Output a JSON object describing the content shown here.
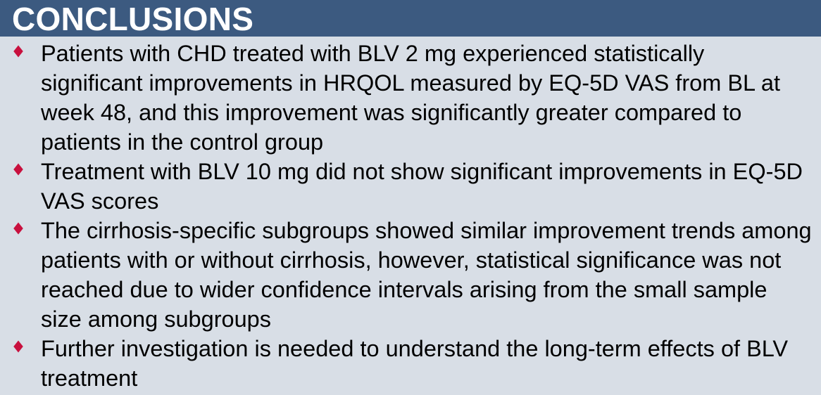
{
  "header": {
    "title": "CONCLUSIONS"
  },
  "colors": {
    "header_bg": "#3c5a80",
    "bullet": "#c8103e",
    "background": "#d8dee6"
  },
  "bullets": [
    {
      "icon": "diamond-bullet-icon",
      "text": "Patients with CHD treated with BLV 2 mg experienced statistically significant improvements in HRQOL measured by EQ-5D VAS from BL at week 48, and this improvement was significantly greater compared to patients in the control group"
    },
    {
      "icon": "diamond-bullet-icon",
      "text": "Treatment with BLV 10 mg did not show significant improvements in EQ-5D VAS scores"
    },
    {
      "icon": "diamond-bullet-icon",
      "text": "The cirrhosis-specific subgroups showed similar improvement trends among patients with or without cirrhosis, however, statistical significance was not reached due to wider confidence intervals arising from the small sample size among subgroups"
    },
    {
      "icon": "diamond-bullet-icon",
      "text": "Further investigation is needed to understand the long-term effects of BLV treatment"
    }
  ]
}
